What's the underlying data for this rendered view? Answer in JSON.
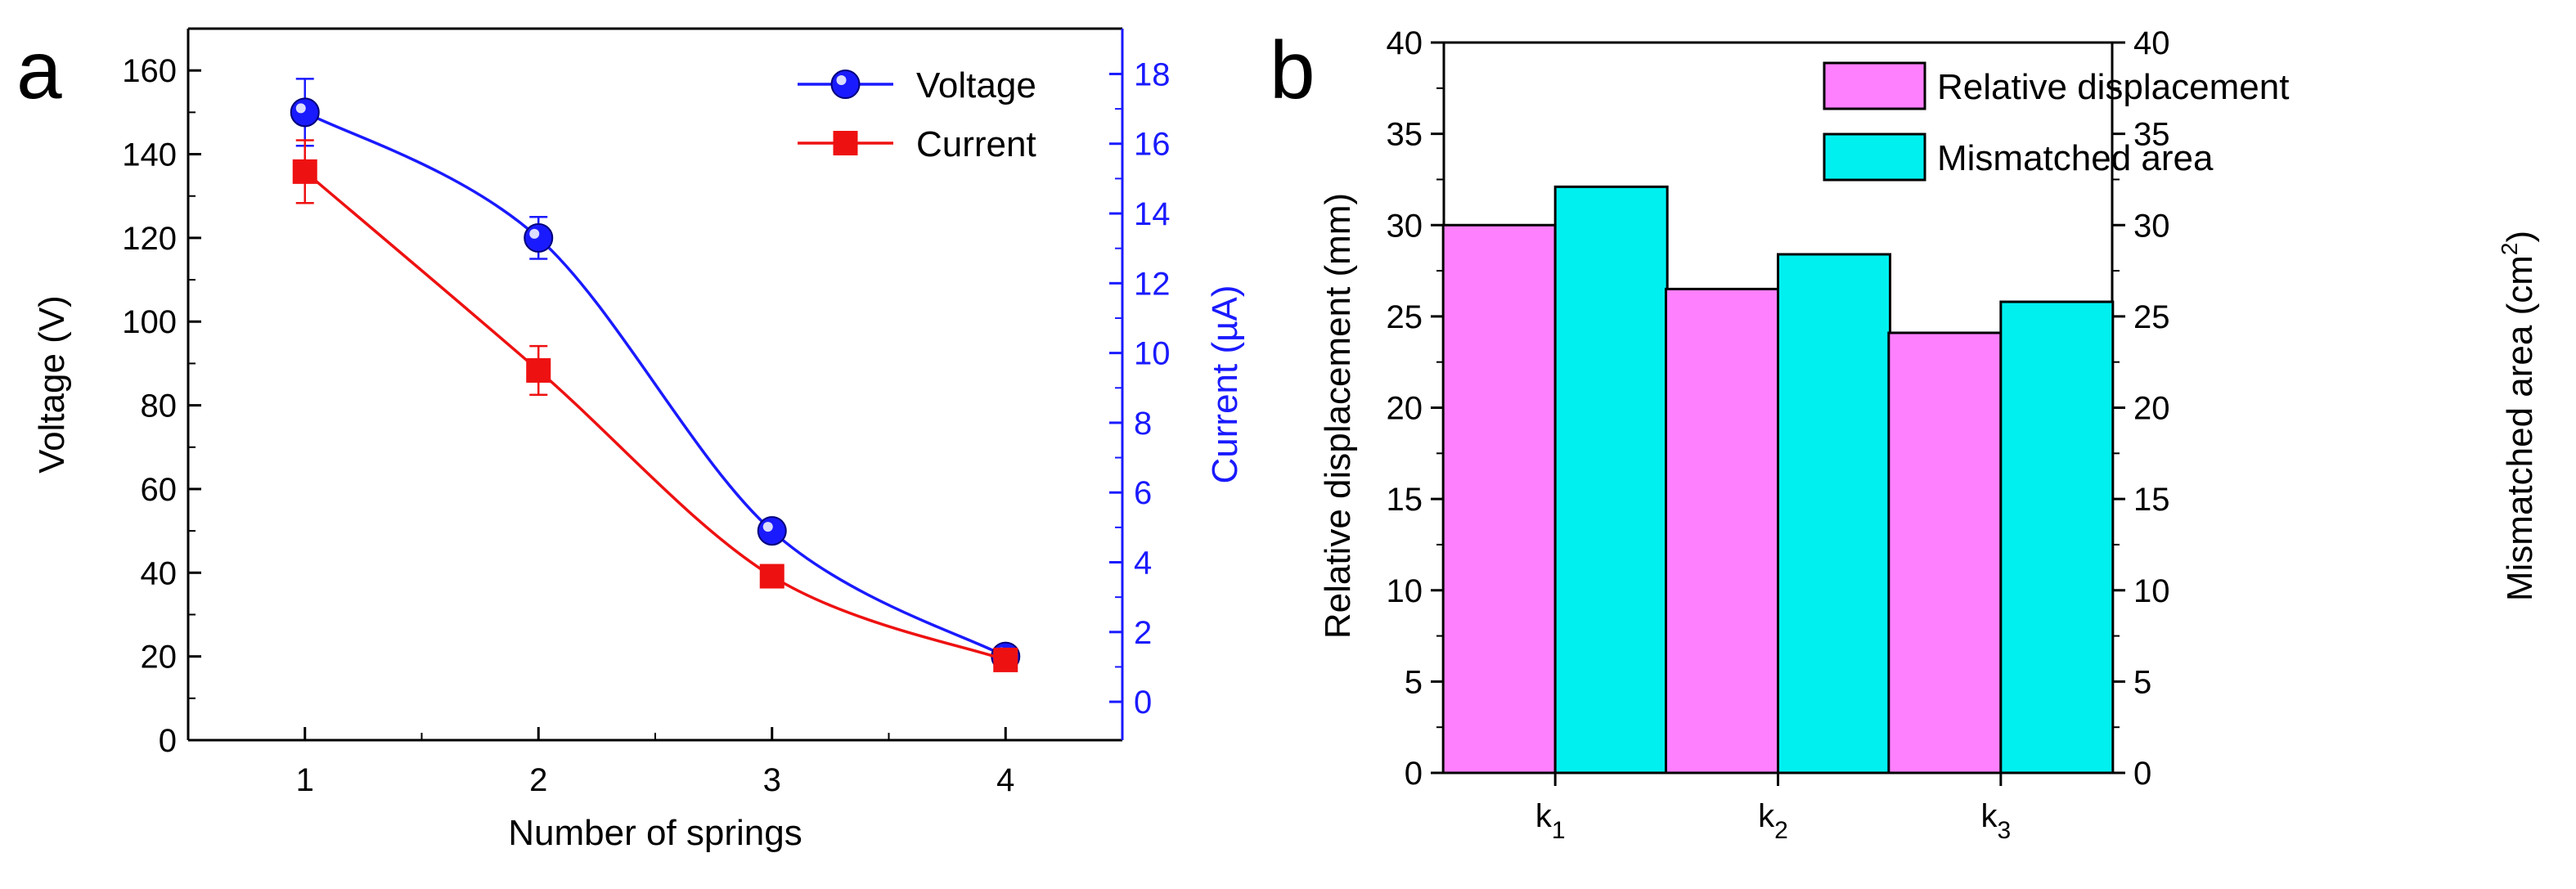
{
  "chart_data": [
    {
      "panel": "a",
      "type": "line",
      "xlabel": "Number of springs",
      "ylabel": "Voltage (V)",
      "y2label": "Current (µA)",
      "x": [
        1,
        2,
        3,
        4
      ],
      "xlim": [
        0.5,
        4.5
      ],
      "xticks": [
        "1",
        "2",
        "3",
        "4"
      ],
      "ylim": [
        0,
        170
      ],
      "yticks": [
        "0",
        "20",
        "40",
        "60",
        "80",
        "100",
        "120",
        "140",
        "160"
      ],
      "y2lim": [
        -1.1,
        19.3
      ],
      "y2ticks": [
        "0",
        "2",
        "4",
        "6",
        "8",
        "10",
        "12",
        "14",
        "16",
        "18"
      ],
      "legend_position": "top-right",
      "series": [
        {
          "name": "Voltage",
          "axis": "left",
          "marker": "circle",
          "color": "#1a1aff",
          "values": [
            150,
            120,
            50,
            20
          ],
          "errors": [
            8,
            5,
            2,
            1
          ]
        },
        {
          "name": "Current",
          "axis": "right",
          "marker": "square",
          "color": "#ee1111",
          "values": [
            15.2,
            9.5,
            3.6,
            1.2
          ],
          "errors": [
            0.9,
            0.7,
            0.2,
            0.1
          ]
        }
      ]
    },
    {
      "panel": "b",
      "type": "bar",
      "ylabel": "Relative displacement (mm)",
      "y2label_main": "Mismatched area (cm",
      "y2label_sup": "2",
      "y2label_end": ")",
      "categories": [
        {
          "base": "k",
          "sub": "1"
        },
        {
          "base": "k",
          "sub": "2"
        },
        {
          "base": "k",
          "sub": "3"
        }
      ],
      "ylim": [
        0,
        40
      ],
      "yticks": [
        "0",
        "5",
        "10",
        "15",
        "20",
        "25",
        "30",
        "35",
        "40"
      ],
      "y2lim": [
        0,
        40
      ],
      "y2ticks": [
        "0",
        "5",
        "10",
        "15",
        "20",
        "25",
        "30",
        "35",
        "40"
      ],
      "legend_position": "top-right",
      "series": [
        {
          "name": "Relative displacement",
          "axis": "left",
          "color": "#ff80ff",
          "values": [
            30.0,
            26.5,
            24.1
          ]
        },
        {
          "name": "Mismatched area",
          "axis": "right",
          "color": "#00f0f0",
          "values": [
            32.1,
            28.4,
            25.8
          ]
        }
      ]
    }
  ]
}
